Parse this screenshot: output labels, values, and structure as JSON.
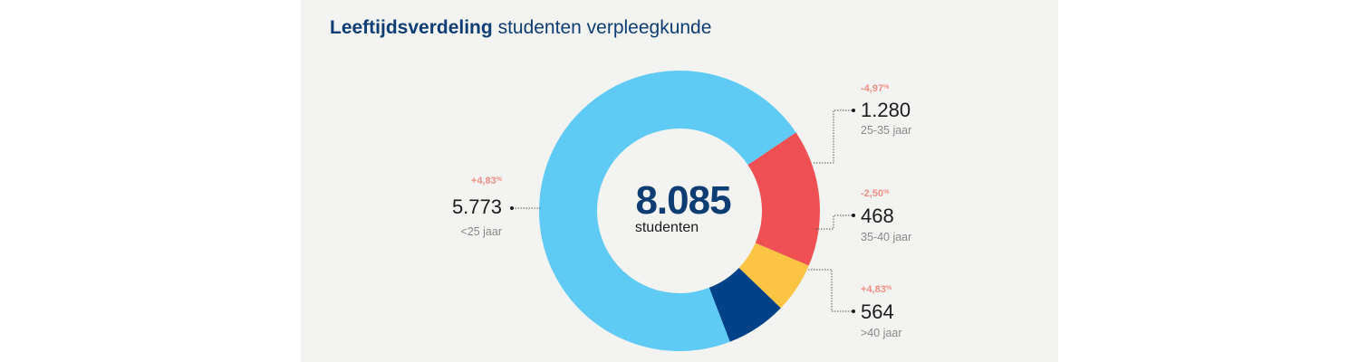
{
  "title": {
    "bold": "Leeftijdsverdeling",
    "rest": "studenten verpleegkunde"
  },
  "total": {
    "value": "8.085",
    "unit": "studenten"
  },
  "colors": {
    "background": "#f3f3f1",
    "title": "#0d3d73",
    "change": "#f08f86",
    "connector": "#555555"
  },
  "chart_data": {
    "type": "pie",
    "title": "Leeftijdsverdeling studenten verpleegkunde",
    "total": 8085,
    "slices": [
      {
        "label": "25-35 jaar",
        "value": 1280,
        "value_text": "1.280",
        "change": "-4,97",
        "change_unit": "%",
        "color": "#ef5053"
      },
      {
        "label": "35-40 jaar",
        "value": 468,
        "value_text": "468",
        "change": "-2,50",
        "change_unit": "%",
        "color": "#fcc443"
      },
      {
        "label": ">40 jaar",
        "value": 564,
        "value_text": "564",
        "change": "+4,83",
        "change_unit": "%",
        "color": "#004288"
      },
      {
        "label": "<25 jaar",
        "value": 5773,
        "value_text": "5.773",
        "change": "+4,83",
        "change_unit": "%",
        "color": "#5fcbf5"
      }
    ]
  }
}
